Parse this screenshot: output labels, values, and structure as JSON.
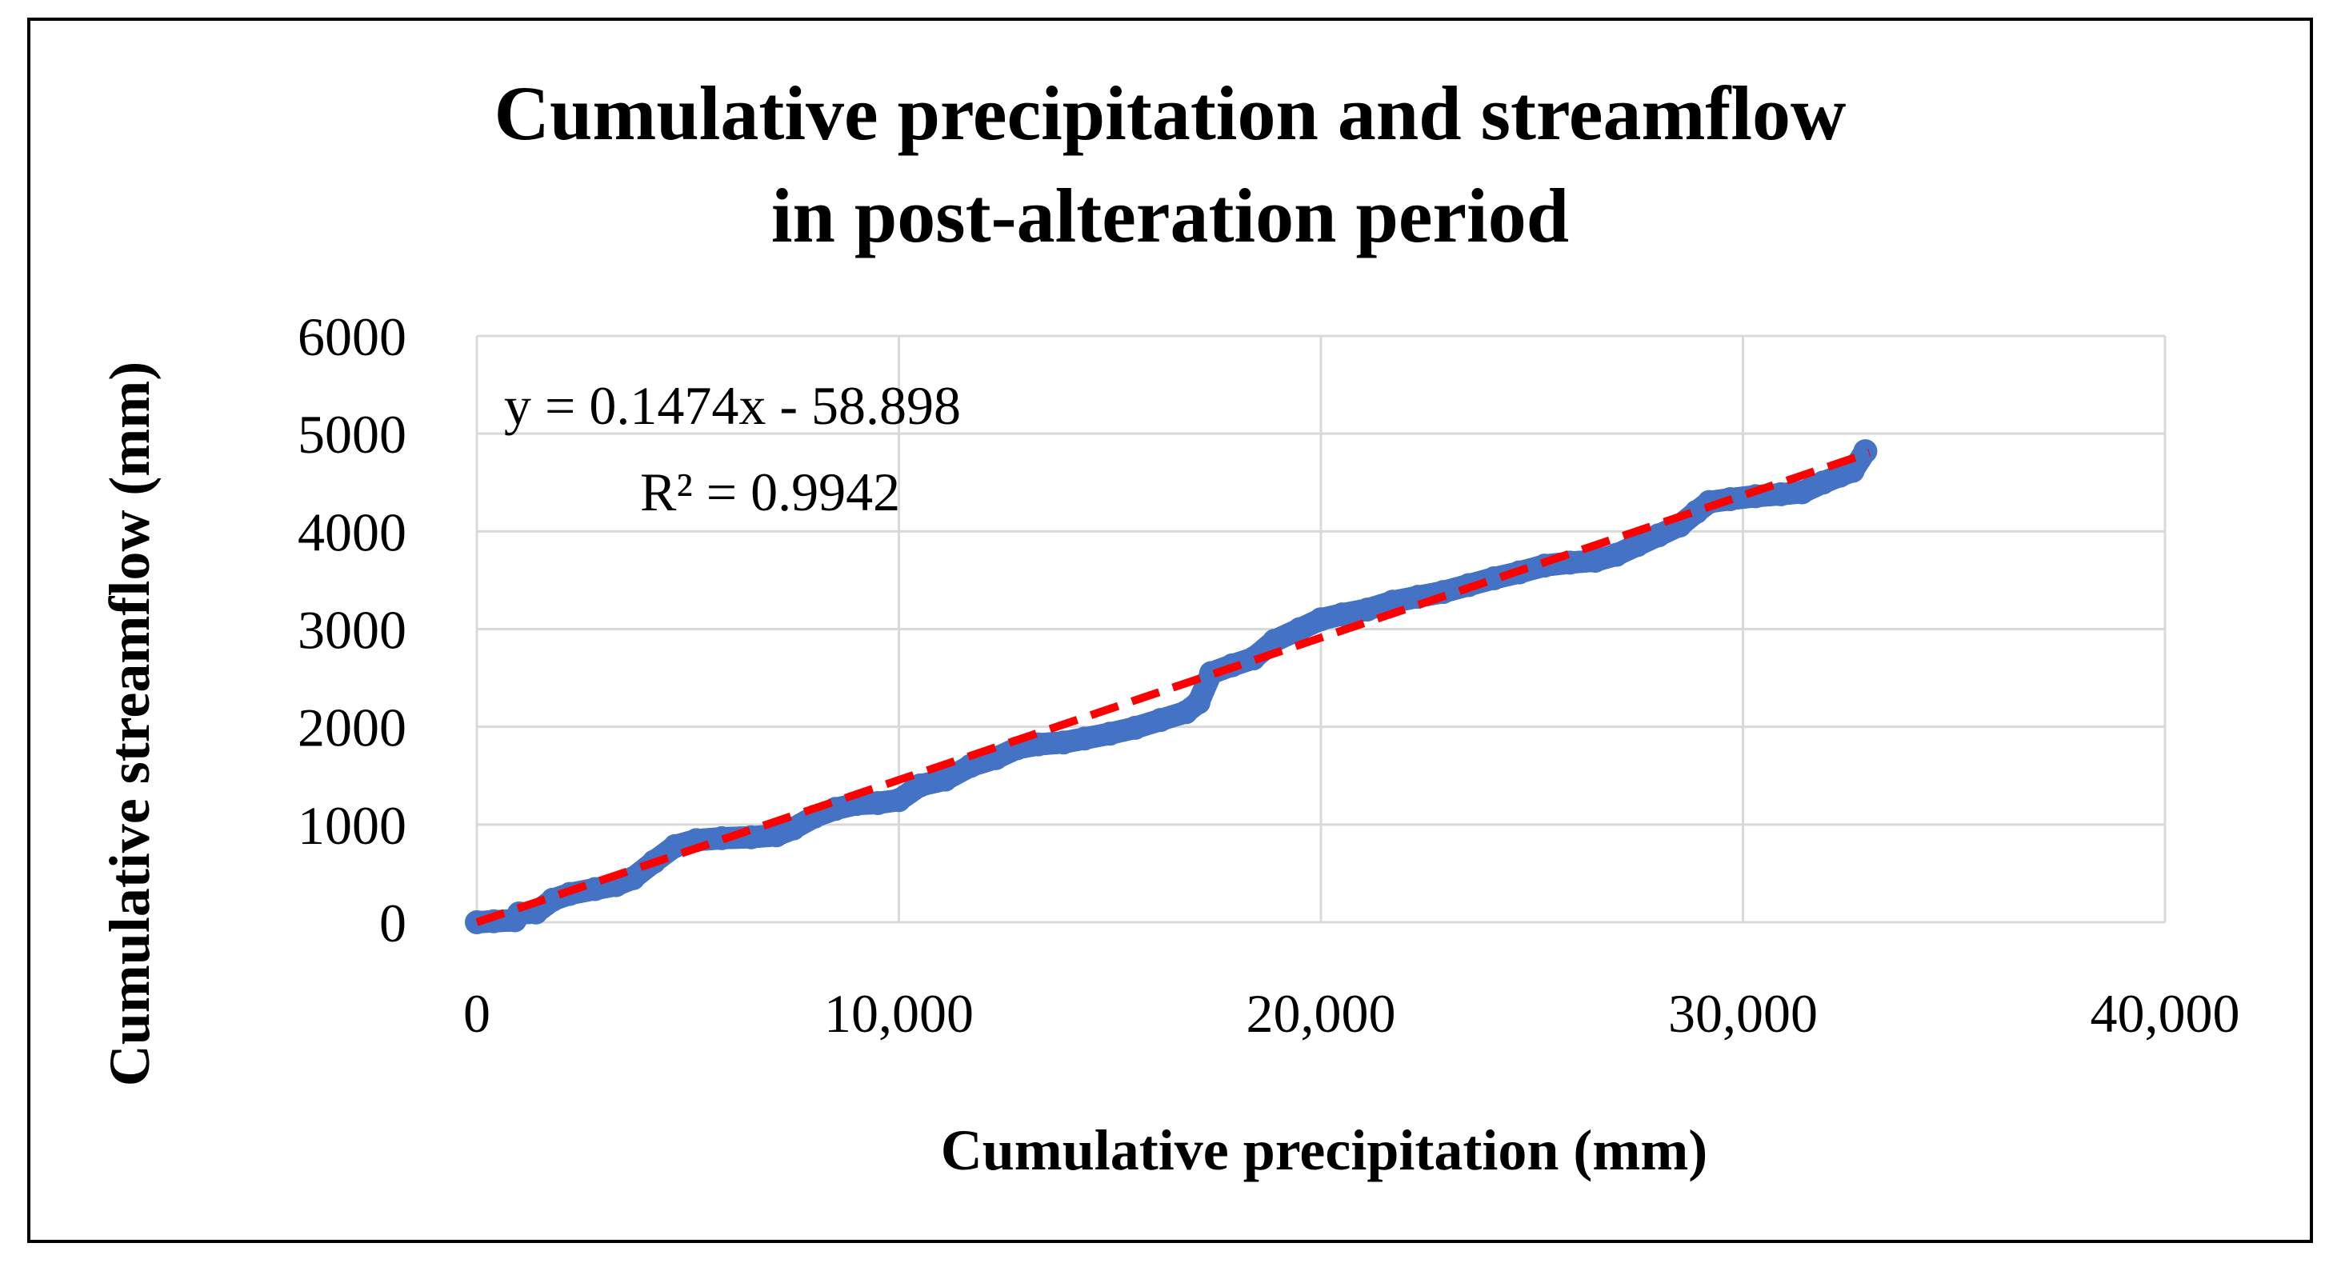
{
  "chart_data": {
    "type": "scatter",
    "title_lines": [
      "Cumulative precipitation and streamflow",
      "in post-alteration period"
    ],
    "xlabel": "Cumulative precipitation (mm)",
    "ylabel": "Cumulative streamflow (mm)",
    "xlim": [
      0,
      40000
    ],
    "ylim": [
      0,
      6000
    ],
    "x_ticks": [
      0,
      10000,
      20000,
      30000,
      40000
    ],
    "x_tick_labels": [
      "0",
      "10,000",
      "20,000",
      "30,000",
      "40,000"
    ],
    "y_ticks": [
      0,
      1000,
      2000,
      3000,
      4000,
      5000,
      6000
    ],
    "y_tick_labels": [
      "0",
      "1000",
      "2000",
      "3000",
      "4000",
      "5000",
      "6000"
    ],
    "grid": true,
    "series": [
      {
        "name": "Cumulative streamflow",
        "color": "#4472C4",
        "points": [
          [
            0,
            0
          ],
          [
            400,
            10
          ],
          [
            900,
            20
          ],
          [
            1000,
            90
          ],
          [
            1400,
            100
          ],
          [
            1800,
            230
          ],
          [
            2200,
            290
          ],
          [
            2800,
            340
          ],
          [
            3300,
            380
          ],
          [
            3700,
            450
          ],
          [
            4200,
            620
          ],
          [
            4700,
            780
          ],
          [
            5200,
            840
          ],
          [
            5800,
            860
          ],
          [
            6500,
            870
          ],
          [
            7100,
            890
          ],
          [
            7500,
            960
          ],
          [
            8000,
            1080
          ],
          [
            8500,
            1160
          ],
          [
            9000,
            1210
          ],
          [
            9500,
            1220
          ],
          [
            10000,
            1250
          ],
          [
            10500,
            1400
          ],
          [
            11100,
            1460
          ],
          [
            11700,
            1600
          ],
          [
            12300,
            1680
          ],
          [
            12800,
            1780
          ],
          [
            13300,
            1820
          ],
          [
            13900,
            1840
          ],
          [
            14400,
            1880
          ],
          [
            15000,
            1930
          ],
          [
            15600,
            1990
          ],
          [
            16200,
            2070
          ],
          [
            16800,
            2150
          ],
          [
            17100,
            2250
          ],
          [
            17400,
            2550
          ],
          [
            17900,
            2630
          ],
          [
            18400,
            2700
          ],
          [
            18900,
            2880
          ],
          [
            19500,
            3000
          ],
          [
            20000,
            3100
          ],
          [
            20500,
            3150
          ],
          [
            21100,
            3200
          ],
          [
            21700,
            3280
          ],
          [
            22300,
            3330
          ],
          [
            22900,
            3380
          ],
          [
            23500,
            3450
          ],
          [
            24100,
            3520
          ],
          [
            24700,
            3580
          ],
          [
            25300,
            3650
          ],
          [
            25900,
            3680
          ],
          [
            26500,
            3700
          ],
          [
            27000,
            3760
          ],
          [
            27500,
            3860
          ],
          [
            28000,
            3960
          ],
          [
            28500,
            4060
          ],
          [
            28900,
            4200
          ],
          [
            29200,
            4300
          ],
          [
            29700,
            4330
          ],
          [
            30300,
            4360
          ],
          [
            30900,
            4380
          ],
          [
            31400,
            4400
          ],
          [
            31900,
            4500
          ],
          [
            32300,
            4570
          ],
          [
            32600,
            4620
          ],
          [
            32900,
            4820
          ]
        ]
      }
    ],
    "trendline": {
      "type": "linear",
      "slope": 0.1474,
      "intercept": -58.898,
      "x_range": [
        0,
        33000
      ],
      "color": "#FF0000",
      "equation_label": "y = 0.1474x - 58.898",
      "r2_label": "R² = 0.9942"
    }
  }
}
